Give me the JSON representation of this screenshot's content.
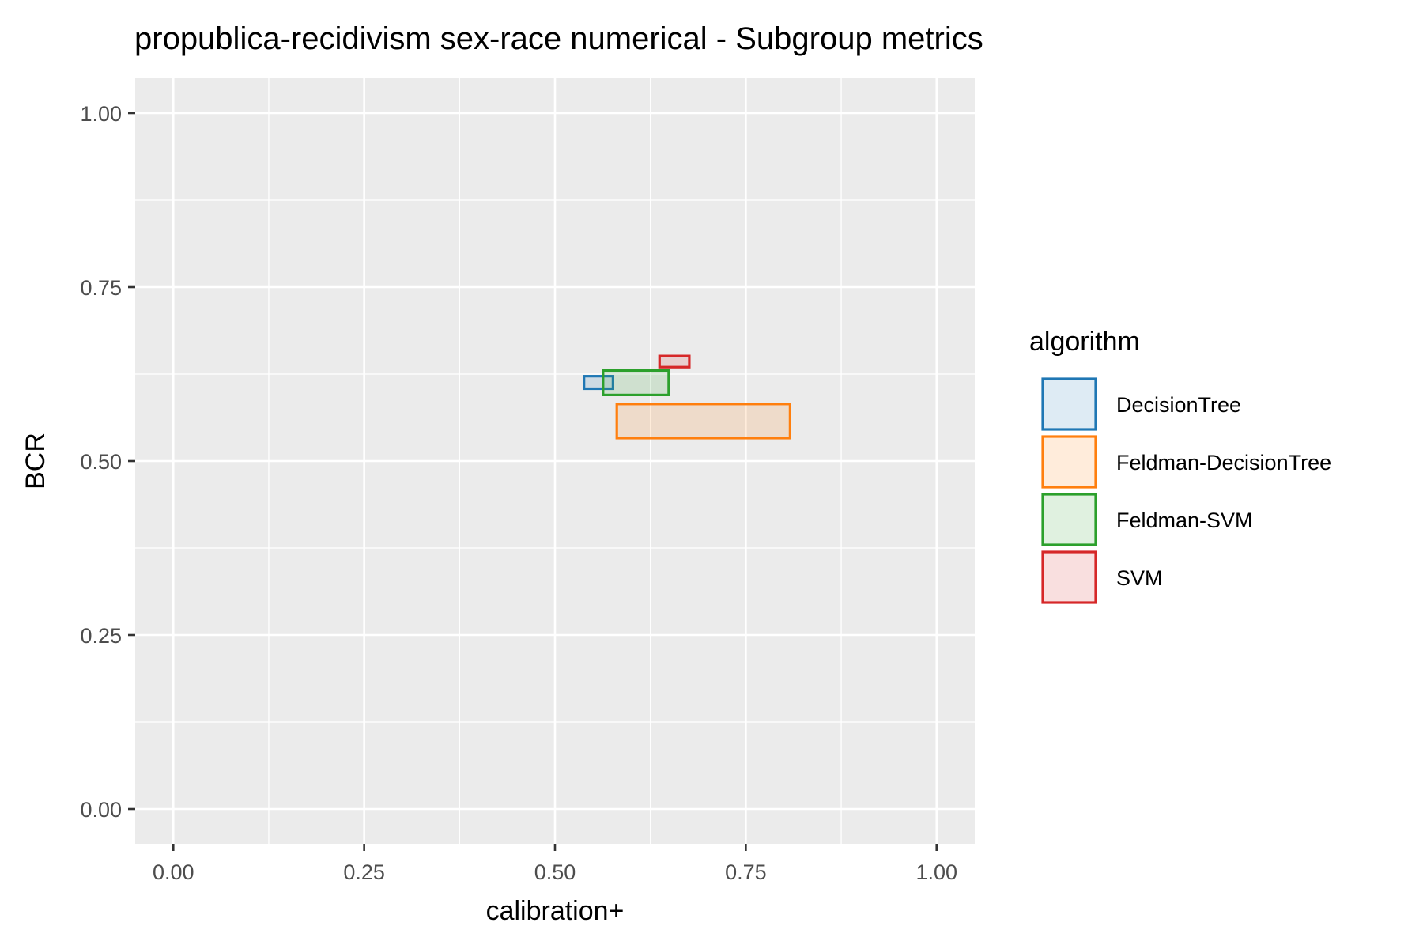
{
  "chart_data": {
    "type": "rect-range",
    "title": "propublica-recidivism sex-race numerical - Subgroup metrics",
    "xlabel": "calibration+",
    "ylabel": "BCR",
    "xlim": [
      -0.05,
      1.05
    ],
    "ylim": [
      -0.05,
      1.05
    ],
    "x_ticks": [
      "0.00",
      "0.25",
      "0.50",
      "0.75",
      "1.00"
    ],
    "y_ticks": [
      "0.00",
      "0.25",
      "0.50",
      "0.75",
      "1.00"
    ],
    "x_tick_values": [
      0,
      0.25,
      0.5,
      0.75,
      1
    ],
    "y_tick_values": [
      0,
      0.25,
      0.5,
      0.75,
      1
    ],
    "grid": true,
    "legend": {
      "title": "algorithm",
      "position": "right"
    },
    "series": [
      {
        "name": "DecisionTree",
        "color": "#1f77b4",
        "xmin": 0.538,
        "xmax": 0.576,
        "ymin": 0.604,
        "ymax": 0.622
      },
      {
        "name": "Feldman-DecisionTree",
        "color": "#ff7f0e",
        "xmin": 0.581,
        "xmax": 0.808,
        "ymin": 0.533,
        "ymax": 0.582
      },
      {
        "name": "Feldman-SVM",
        "color": "#2ca02c",
        "xmin": 0.563,
        "xmax": 0.649,
        "ymin": 0.595,
        "ymax": 0.63
      },
      {
        "name": "SVM",
        "color": "#d62728",
        "xmin": 0.637,
        "xmax": 0.676,
        "ymin": 0.635,
        "ymax": 0.651
      }
    ]
  }
}
